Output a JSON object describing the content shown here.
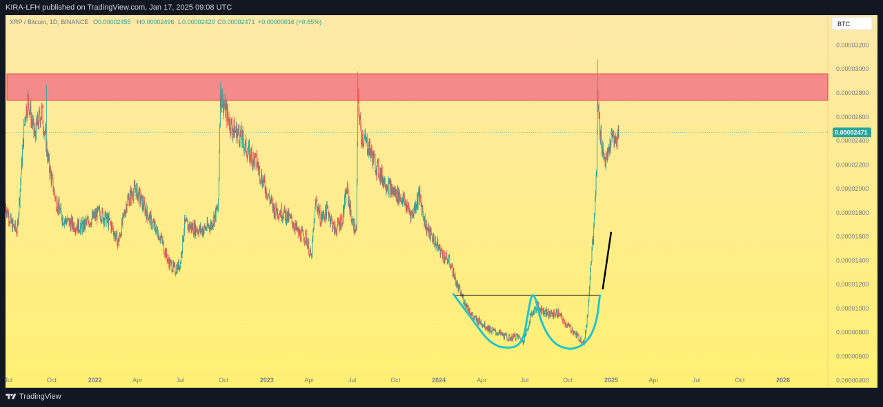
{
  "header": {
    "publisher_line": "KIRA-LFH published on TradingView.com, Jan 17, 2025 09:08 UTC"
  },
  "legend": {
    "symbol": "XRP / Bitcoin, 1D, BINANCE",
    "o_label": "O",
    "o_value": "0.00002455",
    "h_label": "H",
    "h_value": "0.00002496",
    "l_label": "L",
    "l_value": "0.00002420",
    "c_label": "C",
    "c_value": "0.00002471",
    "change": "+0.00000016 (+0.65%)"
  },
  "currency_badge": "BTC",
  "footer": {
    "brand": "TradingView",
    "logo_icon": "tradingview-logo-icon"
  },
  "colors": {
    "bg_top": "#fde9a8",
    "bg_bottom": "#fff073",
    "up": "#26a69a",
    "down": "#ef5350",
    "zone_fill": "#f48a8a",
    "zone_stroke": "#e8344a",
    "cup": "#1ec4cf",
    "last_price": "#26a69a"
  },
  "chart_data": {
    "type": "candlestick",
    "title": "XRP / Bitcoin, 1D, BINANCE",
    "y_ticks": [
      "0.00003200",
      "0.00003000",
      "0.00002800",
      "0.00002600",
      "0.00002400",
      "0.00002200",
      "0.00002000",
      "0.00001800",
      "0.00001600",
      "0.00001400",
      "0.00001200",
      "0.00001000",
      "0.00000800",
      "0.00000600",
      "0.00000400"
    ],
    "y_tick_values": [
      3.2e-05,
      3e-05,
      2.8e-05,
      2.6e-05,
      2.4e-05,
      2.2e-05,
      2e-05,
      1.8e-05,
      1.6e-05,
      1.4e-05,
      1.2e-05,
      1e-05,
      8e-06,
      6e-06,
      4e-06
    ],
    "ylim": [
      3.9e-06,
      3.45e-05
    ],
    "x_ticks": [
      {
        "label": "Jul",
        "date": "2021-07-01"
      },
      {
        "label": "Oct",
        "date": "2021-10-01"
      },
      {
        "label": "2022",
        "date": "2022-01-01"
      },
      {
        "label": "Apr",
        "date": "2022-04-01"
      },
      {
        "label": "Jul",
        "date": "2022-07-01"
      },
      {
        "label": "Oct",
        "date": "2022-10-01"
      },
      {
        "label": "2023",
        "date": "2023-01-01"
      },
      {
        "label": "Apr",
        "date": "2023-04-01"
      },
      {
        "label": "Jul",
        "date": "2023-07-01"
      },
      {
        "label": "Oct",
        "date": "2023-10-01"
      },
      {
        "label": "2024",
        "date": "2024-01-01"
      },
      {
        "label": "Apr",
        "date": "2024-04-01"
      },
      {
        "label": "Jul",
        "date": "2024-07-01"
      },
      {
        "label": "Oct",
        "date": "2024-10-01"
      },
      {
        "label": "2025",
        "date": "2025-01-01"
      },
      {
        "label": "Apr",
        "date": "2025-04-01"
      },
      {
        "label": "Jul",
        "date": "2025-07-01"
      },
      {
        "label": "Oct",
        "date": "2025-10-01"
      },
      {
        "label": "2026",
        "date": "2026-01-01"
      }
    ],
    "xlim": [
      "2021-06-25",
      "2026-04-06"
    ],
    "bold_x_ticks": [
      "2022",
      "2023",
      "2024",
      "2025",
      "2026"
    ],
    "price_path": [
      [
        "2021-06-25",
        1.86e-05
      ],
      [
        "2021-07-08",
        1.7e-05
      ],
      [
        "2021-07-20",
        1.65e-05
      ],
      [
        "2021-08-05",
        2.6e-05
      ],
      [
        "2021-08-12",
        2.75e-05
      ],
      [
        "2021-08-25",
        2.45e-05
      ],
      [
        "2021-09-10",
        2.65e-05
      ],
      [
        "2021-09-25",
        2.2e-05
      ],
      [
        "2021-10-10",
        1.9e-05
      ],
      [
        "2021-10-25",
        1.75e-05
      ],
      [
        "2021-11-15",
        1.7e-05
      ],
      [
        "2021-12-05",
        1.68e-05
      ],
      [
        "2021-12-25",
        1.75e-05
      ],
      [
        "2022-01-10",
        1.8e-05
      ],
      [
        "2022-02-01",
        1.72e-05
      ],
      [
        "2022-02-20",
        1.55e-05
      ],
      [
        "2022-03-10",
        1.9e-05
      ],
      [
        "2022-03-28",
        2e-05
      ],
      [
        "2022-04-15",
        1.85e-05
      ],
      [
        "2022-05-01",
        1.72e-05
      ],
      [
        "2022-05-20",
        1.6e-05
      ],
      [
        "2022-06-05",
        1.4e-05
      ],
      [
        "2022-06-20",
        1.32e-05
      ],
      [
        "2022-07-01",
        1.38e-05
      ],
      [
        "2022-07-10",
        1.7e-05
      ],
      [
        "2022-07-25",
        1.68e-05
      ],
      [
        "2022-08-15",
        1.65e-05
      ],
      [
        "2022-09-05",
        1.7e-05
      ],
      [
        "2022-09-20",
        1.85e-05
      ],
      [
        "2022-09-24",
        2.8e-05
      ],
      [
        "2022-10-05",
        2.65e-05
      ],
      [
        "2022-10-20",
        2.5e-05
      ],
      [
        "2022-11-05",
        2.45e-05
      ],
      [
        "2022-11-20",
        2.32e-05
      ],
      [
        "2022-12-10",
        2.22e-05
      ],
      [
        "2022-12-25",
        2.05e-05
      ],
      [
        "2023-01-15",
        1.83e-05
      ],
      [
        "2023-02-05",
        1.8e-05
      ],
      [
        "2023-02-25",
        1.72e-05
      ],
      [
        "2023-03-10",
        1.62e-05
      ],
      [
        "2023-03-25",
        1.6e-05
      ],
      [
        "2023-04-05",
        1.42e-05
      ],
      [
        "2023-04-15",
        1.9e-05
      ],
      [
        "2023-04-25",
        1.75e-05
      ],
      [
        "2023-05-10",
        1.82e-05
      ],
      [
        "2023-05-25",
        1.65e-05
      ],
      [
        "2023-06-10",
        1.75e-05
      ],
      [
        "2023-06-20",
        2e-05
      ],
      [
        "2023-07-01",
        1.72e-05
      ],
      [
        "2023-07-10",
        1.65e-05
      ],
      [
        "2023-07-13",
        2.75e-05
      ],
      [
        "2023-07-20",
        2.45e-05
      ],
      [
        "2023-08-05",
        2.35e-05
      ],
      [
        "2023-08-20",
        2.2e-05
      ],
      [
        "2023-09-05",
        2.08e-05
      ],
      [
        "2023-09-25",
        1.98e-05
      ],
      [
        "2023-10-15",
        1.92e-05
      ],
      [
        "2023-11-05",
        1.78e-05
      ],
      [
        "2023-11-20",
        1.95e-05
      ],
      [
        "2023-12-05",
        1.68e-05
      ],
      [
        "2023-12-25",
        1.55e-05
      ],
      [
        "2024-01-10",
        1.45e-05
      ],
      [
        "2024-01-25",
        1.38e-05
      ],
      [
        "2024-02-10",
        1.18e-05
      ],
      [
        "2024-02-25",
        1.05e-05
      ],
      [
        "2024-03-15",
        9.2e-06
      ],
      [
        "2024-04-01",
        8.8e-06
      ],
      [
        "2024-04-20",
        8.2e-06
      ],
      [
        "2024-05-10",
        7.9e-06
      ],
      [
        "2024-05-28",
        7.5e-06
      ],
      [
        "2024-06-15",
        7.7e-06
      ],
      [
        "2024-06-28",
        7.3e-06
      ],
      [
        "2024-07-05",
        8e-06
      ],
      [
        "2024-07-15",
        9.5e-06
      ],
      [
        "2024-07-28",
        1.02e-05
      ],
      [
        "2024-08-10",
        9.8e-06
      ],
      [
        "2024-08-25",
        9.5e-06
      ],
      [
        "2024-09-10",
        9.6e-06
      ],
      [
        "2024-09-25",
        8.8e-06
      ],
      [
        "2024-10-10",
        8.2e-06
      ],
      [
        "2024-10-25",
        7.5e-06
      ],
      [
        "2024-11-05",
        7.2e-06
      ],
      [
        "2024-11-12",
        9.5e-06
      ],
      [
        "2024-11-18",
        1.35e-05
      ],
      [
        "2024-11-25",
        1.65e-05
      ],
      [
        "2024-12-01",
        2.15e-05
      ],
      [
        "2024-12-03",
        2.75e-05
      ],
      [
        "2024-12-08",
        2.5e-05
      ],
      [
        "2024-12-15",
        2.3e-05
      ],
      [
        "2024-12-22",
        2.22e-05
      ],
      [
        "2024-12-30",
        2.38e-05
      ],
      [
        "2025-01-05",
        2.45e-05
      ],
      [
        "2025-01-10",
        2.38e-05
      ],
      [
        "2025-01-17",
        2.47e-05
      ]
    ],
    "spikes": [
      {
        "date": "2021-09-20",
        "high": 2.87e-05
      },
      {
        "date": "2022-09-24",
        "high": 2.89e-05
      },
      {
        "date": "2023-07-13",
        "high": 2.98e-05
      },
      {
        "date": "2024-12-03",
        "high": 3.08e-05
      }
    ],
    "last_price": {
      "value": 2.471e-05,
      "label": "0.00002471"
    },
    "annotations": {
      "resistance_zone": {
        "date_start": "2021-06-28",
        "date_end": "2026-04-06",
        "price_low": 2.74e-05,
        "price_high": 2.96e-05
      },
      "neckline": {
        "date_start": "2024-02-01",
        "date_end": "2024-12-08",
        "price": 1.11e-05
      },
      "cup_and_handle": {
        "points": [
          [
            "2024-02-01",
            1.12e-05
          ],
          [
            "2024-03-10",
            9.2e-06
          ],
          [
            "2024-04-20",
            7e-06
          ],
          [
            "2024-06-01",
            6.6e-06
          ],
          [
            "2024-06-28",
            7.2e-06
          ],
          [
            "2024-07-08",
            9.5e-06
          ],
          [
            "2024-07-16",
            1.12e-05
          ],
          [
            "2024-07-24",
            1.1e-05
          ],
          [
            "2024-08-05",
            8.8e-06
          ],
          [
            "2024-09-01",
            7e-06
          ],
          [
            "2024-10-10",
            6.5e-06
          ],
          [
            "2024-11-12",
            7.2e-06
          ],
          [
            "2024-12-01",
            8.8e-06
          ],
          [
            "2024-12-08",
            1.11e-05
          ]
        ]
      },
      "up_arrow_line": {
        "start": [
          "2024-12-14",
          1.16e-05
        ],
        "end": [
          "2025-01-01",
          1.64e-05
        ]
      }
    }
  }
}
